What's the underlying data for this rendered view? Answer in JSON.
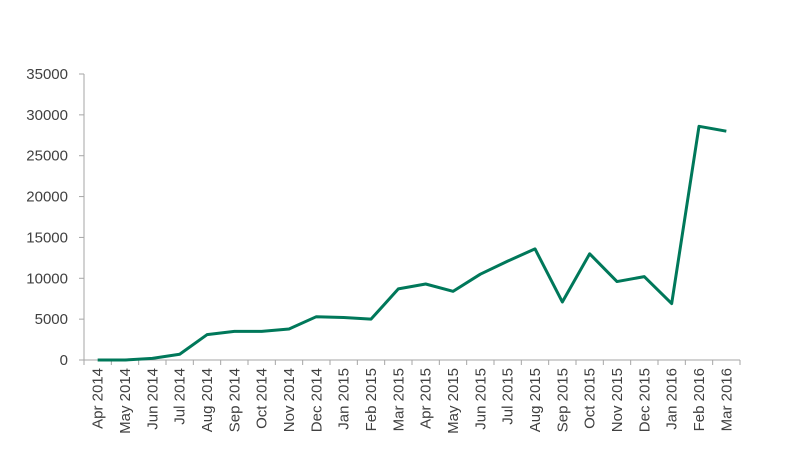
{
  "chart_data": {
    "type": "line",
    "categories": [
      "Apr 2014",
      "May 2014",
      "Jun 2014",
      "Jul 2014",
      "Aug 2014",
      "Sep 2014",
      "Oct 2014",
      "Nov 2014",
      "Dec 2014",
      "Jan 2015",
      "Feb 2015",
      "Mar 2015",
      "Apr 2015",
      "May 2015",
      "Jun 2015",
      "Jul 2015",
      "Aug 2015",
      "Sep 2015",
      "Oct 2015",
      "Nov 2015",
      "Dec 2015",
      "Jan 2016",
      "Feb 2016",
      "Mar 2016"
    ],
    "series": [
      {
        "color": "#00785a",
        "values": [
          0,
          0,
          200,
          700,
          3100,
          3500,
          3500,
          3800,
          5300,
          5200,
          5000,
          8700,
          9300,
          8400,
          10500,
          12100,
          13600,
          7100,
          13000,
          9600,
          10200,
          6900,
          28600,
          28000
        ]
      }
    ],
    "ylim": [
      0,
      35000
    ],
    "yticks": [
      0,
      5000,
      10000,
      15000,
      20000,
      25000,
      30000,
      35000
    ],
    "grid": false
  }
}
